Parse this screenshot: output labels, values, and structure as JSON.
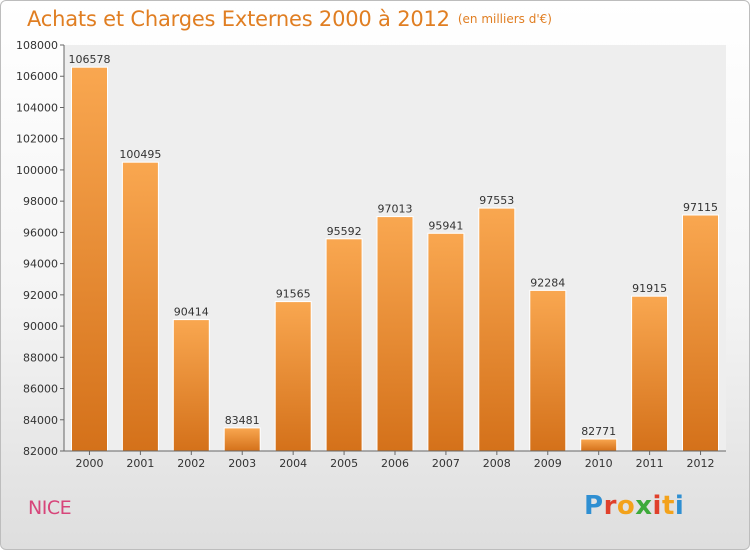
{
  "chart_data": {
    "type": "bar",
    "title": "Achats et Charges Externes 2000 à 2012",
    "subtitle": "(en milliers d'€)",
    "categories": [
      "2000",
      "2001",
      "2002",
      "2003",
      "2004",
      "2005",
      "2006",
      "2007",
      "2008",
      "2009",
      "2010",
      "2011",
      "2012"
    ],
    "values": [
      106578,
      100495,
      90414,
      83481,
      91565,
      95592,
      97013,
      95941,
      97553,
      92284,
      82771,
      91915,
      97115
    ],
    "ylim": [
      82000,
      108000
    ],
    "yticks": [
      82000,
      84000,
      86000,
      88000,
      90000,
      92000,
      94000,
      96000,
      98000,
      100000,
      102000,
      104000,
      106000,
      108000
    ],
    "xlabel": "",
    "ylabel": "",
    "grid": false,
    "colors": {
      "bar_light": "#f9a750",
      "bar_dark": "#d4711a",
      "title": "#e07e22",
      "plot_background": "#eeeeee",
      "axis": "#666666"
    }
  },
  "footer": {
    "city": "NICE",
    "logo": [
      "P",
      "r",
      "o",
      "x",
      "i",
      "t",
      "i"
    ],
    "logo_colors": [
      "#2f8fd2",
      "#e0402b",
      "#f3a21b",
      "#3daa3a",
      "#e0402b",
      "#f3a21b",
      "#2f8fd2"
    ]
  }
}
